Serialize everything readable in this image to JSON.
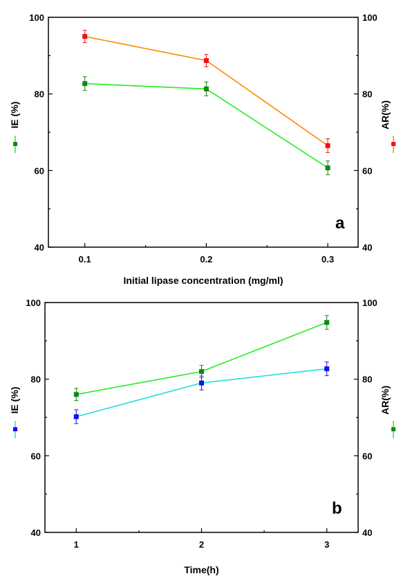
{
  "chart_data": [
    {
      "type": "line",
      "panel_label": "a",
      "xlabel": "Initial lipase concentration (mg/ml)",
      "ylabel_left": "IE (%)",
      "ylabel_right": "AR(%)",
      "x": [
        0.1,
        0.2,
        0.3
      ],
      "x_tick_labels": [
        "0.1",
        "0.2",
        "0.3"
      ],
      "xlim": [
        0.07,
        0.325
      ],
      "ylim": [
        40,
        100
      ],
      "y_ticks": [
        40,
        60,
        80,
        100
      ],
      "grid": false,
      "series": [
        {
          "name": "IE (%)",
          "axis": "left",
          "values": [
            82.7,
            81.3,
            60.7
          ],
          "errors": [
            1.8,
            1.8,
            1.8
          ],
          "line_color": "#22ee22",
          "marker_color": "#118811"
        },
        {
          "name": "AR(%)",
          "axis": "right",
          "values": [
            95.0,
            88.7,
            66.5
          ],
          "errors": [
            1.6,
            1.6,
            1.8
          ],
          "line_color": "#ff8800",
          "marker_color": "#ee1111"
        }
      ]
    },
    {
      "type": "line",
      "panel_label": "b",
      "xlabel": "Time(h)",
      "ylabel_left": "IE (%)",
      "ylabel_right": "AR(%)",
      "x": [
        1,
        2,
        3
      ],
      "x_tick_labels": [
        "1",
        "2",
        "3"
      ],
      "xlim": [
        0.75,
        3.25
      ],
      "ylim": [
        40,
        100
      ],
      "y_ticks": [
        40,
        60,
        80,
        100
      ],
      "grid": false,
      "series": [
        {
          "name": "IE (%)",
          "axis": "left",
          "values": [
            70.2,
            79.0,
            82.7
          ],
          "errors": [
            1.8,
            1.8,
            1.8
          ],
          "line_color": "#22dddd",
          "marker_color": "#1111ee"
        },
        {
          "name": "AR(%)",
          "axis": "right",
          "values": [
            76.0,
            82.0,
            94.8
          ],
          "errors": [
            1.6,
            1.6,
            1.8
          ],
          "line_color": "#22ee22",
          "marker_color": "#118811"
        }
      ]
    }
  ]
}
